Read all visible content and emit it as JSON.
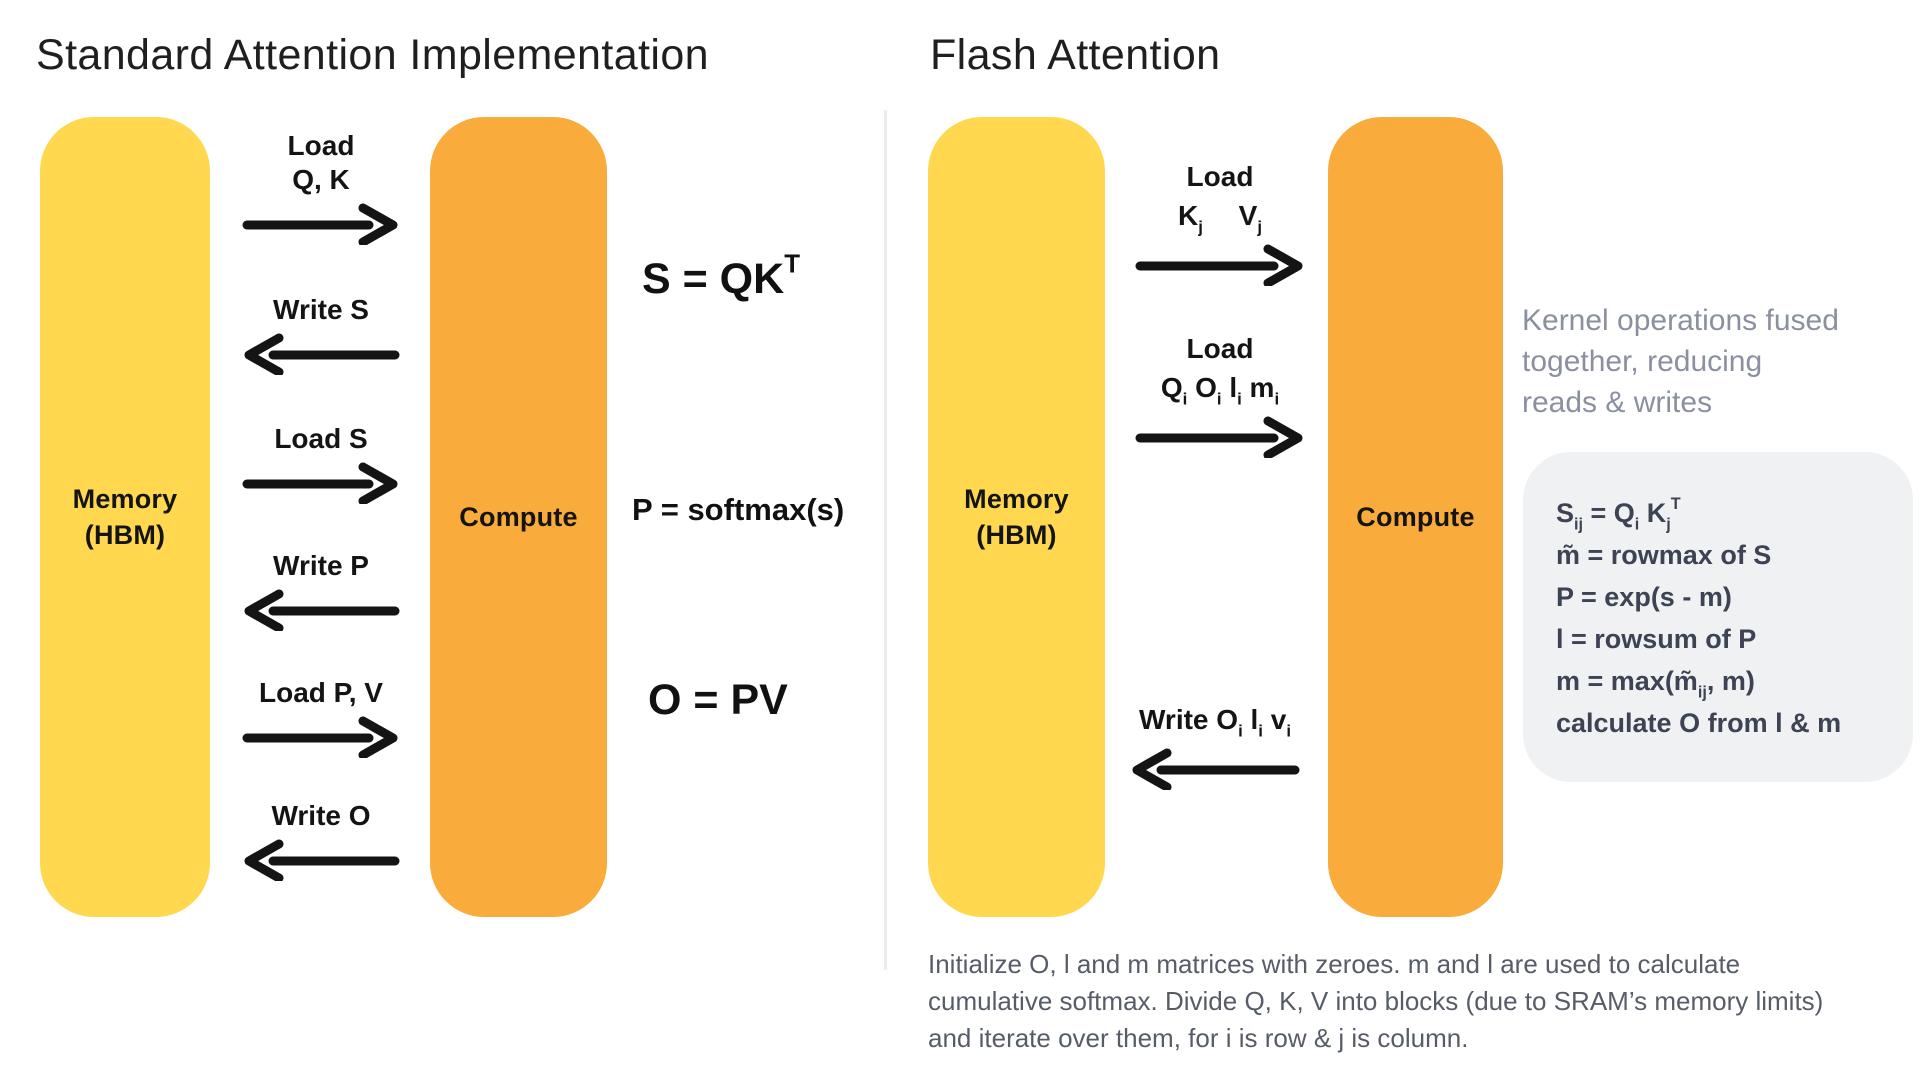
{
  "standard": {
    "title": "Standard Attention Implementation",
    "memory": [
      "Memory",
      "(HBM)"
    ],
    "compute": "Compute",
    "arrows": [
      {
        "label": "Load",
        "label2": "Q, K",
        "dir": "right"
      },
      {
        "label": "Write S",
        "dir": "left"
      },
      {
        "label": "Load S",
        "dir": "right"
      },
      {
        "label": "Write P",
        "dir": "left"
      },
      {
        "label": "Load P, V",
        "dir": "right"
      },
      {
        "label": "Write O",
        "dir": "left"
      }
    ],
    "formulas": [
      "S = QK^T",
      "P = softmax(s)",
      "O = PV"
    ]
  },
  "flash": {
    "title": "Flash Attention",
    "memory": [
      "Memory",
      "(HBM)"
    ],
    "compute": "Compute",
    "arrows": [
      {
        "label": "Load",
        "label2": "K_j  V_j",
        "dir": "right"
      },
      {
        "label": "Load",
        "label2": "Q_i O_i l_i m_i",
        "dir": "right"
      },
      {
        "label": "Write O_i l_i v_i",
        "dir": "left"
      }
    ],
    "note": [
      "Kernel operations fused",
      "together, reducing",
      "reads & writes"
    ],
    "box_formulas": [
      "S_ij = Q_i K_j^T",
      "m̃ = rowmax of S",
      "P = exp(s - m)",
      "l = rowsum of P",
      "m = max(m̃_ij, m)",
      "calculate O from l & m"
    ],
    "footnote": [
      "Initialize O, l and m matrices with zeroes. m and l are used to calculate",
      "cumulative softmax. Divide Q, K, V into blocks (due to SRAM’s memory limits)",
      "and iterate over them, for i is row & j is column."
    ]
  },
  "colors": {
    "yellow": "#FFD84F",
    "orange": "#F9AB3C",
    "black": "#141414",
    "note_gray": "#8A90A0",
    "box_bg": "#F0F1F3",
    "box_text": "#3D4352",
    "footnote_gray": "#575D68",
    "divider": "#ECECEC",
    "title_color": "#1F1F1F",
    "bg": "#FFFFFF"
  }
}
